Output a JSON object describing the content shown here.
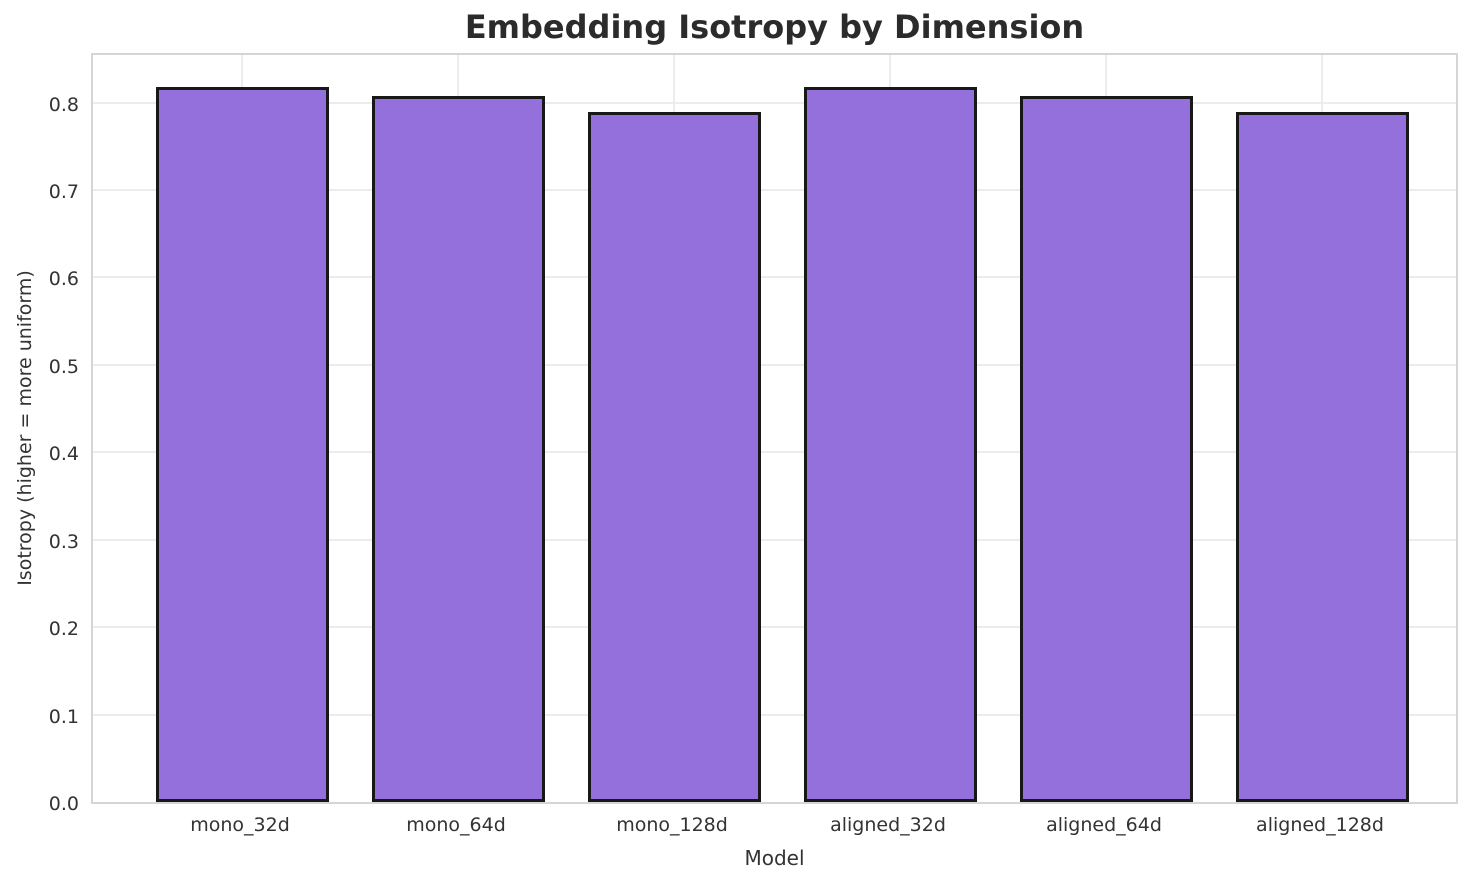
{
  "chart_data": {
    "type": "bar",
    "title": "Embedding Isotropy by Dimension",
    "xlabel": "Model",
    "ylabel": "Isotropy (higher = more uniform)",
    "categories": [
      "mono_32d",
      "mono_64d",
      "mono_128d",
      "aligned_32d",
      "aligned_64d",
      "aligned_128d"
    ],
    "values": [
      0.818,
      0.808,
      0.789,
      0.818,
      0.808,
      0.789
    ],
    "ylim": [
      0,
      0.859
    ],
    "yticks": [
      "0.0",
      "0.1",
      "0.2",
      "0.3",
      "0.4",
      "0.5",
      "0.6",
      "0.7",
      "0.8"
    ],
    "grid": true,
    "legend": "none",
    "bar_color": "#9370DB",
    "bar_edge_color": "#181818",
    "grid_color": "#ececec",
    "spine_color": "#d5d5d5",
    "text_color": "#333333",
    "title_color": "#2b2b2b",
    "background_color": "#ffffff"
  }
}
